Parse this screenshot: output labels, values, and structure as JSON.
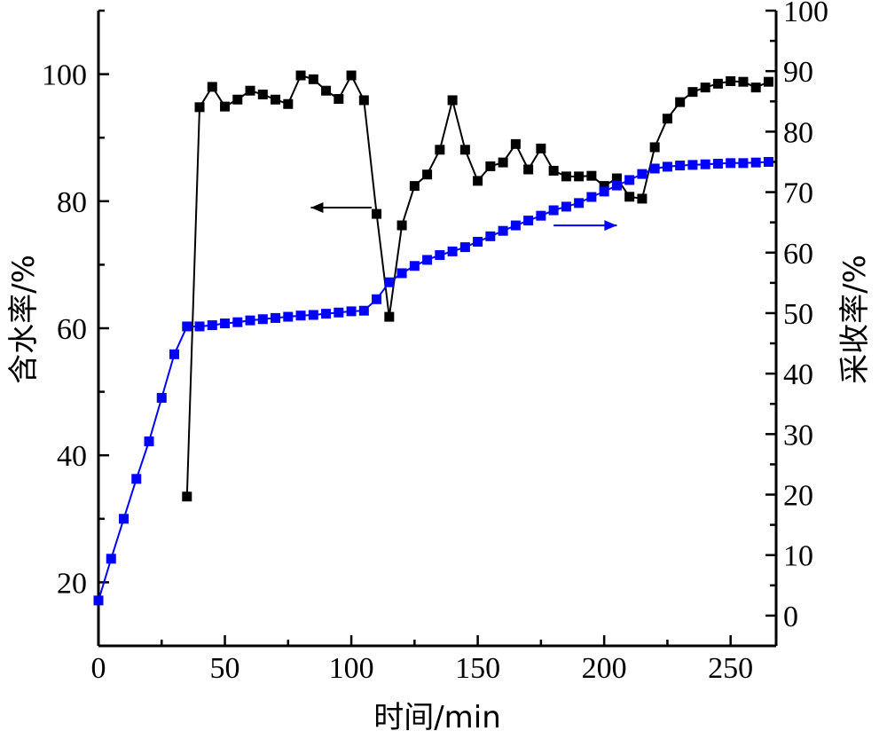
{
  "chart_data": {
    "type": "line",
    "title": "",
    "xlabel": "时间/min",
    "ylabel_left": "含水率/%",
    "ylabel_right": "采收率/%",
    "xlim": [
      0,
      268
    ],
    "ylim_left": [
      10,
      110
    ],
    "ylim_right": [
      -5,
      100
    ],
    "xticks": [
      0,
      50,
      100,
      150,
      200,
      250
    ],
    "yticks_left": [
      20,
      40,
      60,
      80,
      100
    ],
    "yticks_right": [
      0,
      10,
      20,
      30,
      40,
      50,
      60,
      70,
      80,
      90,
      100
    ],
    "grid": false,
    "legend": "none",
    "series": [
      {
        "axis": "left",
        "color": "#000000",
        "marker": "square",
        "x": [
          35,
          40,
          45,
          50,
          55,
          60,
          65,
          70,
          75,
          80,
          85,
          90,
          95,
          100,
          105,
          110,
          115,
          120,
          125,
          130,
          135,
          140,
          145,
          150,
          155,
          160,
          165,
          170,
          175,
          180,
          185,
          190,
          195,
          200,
          205,
          210,
          215,
          220,
          225,
          230,
          235,
          240,
          245,
          250,
          255,
          260,
          265
        ],
        "y": [
          33.5,
          94.8,
          98.0,
          94.9,
          96.0,
          97.4,
          96.8,
          96.0,
          95.3,
          99.8,
          99.2,
          97.4,
          96.1,
          99.8,
          95.9,
          78.0,
          61.8,
          76.2,
          82.4,
          84.2,
          88.1,
          95.9,
          88.1,
          83.2,
          85.5,
          86.1,
          89.0,
          85.0,
          88.3,
          84.8,
          83.9,
          83.9,
          84.0,
          82.4,
          83.6,
          80.7,
          80.4,
          88.5,
          93.0,
          95.6,
          97.2,
          97.9,
          98.5,
          98.9,
          98.8,
          97.9,
          98.8
        ]
      },
      {
        "axis": "right",
        "color": "#0000ff",
        "marker": "square",
        "x": [
          0,
          5,
          10,
          15,
          20,
          25,
          30,
          35,
          40,
          45,
          50,
          55,
          60,
          65,
          70,
          75,
          80,
          85,
          90,
          95,
          100,
          105,
          110,
          115,
          120,
          125,
          130,
          135,
          140,
          145,
          150,
          155,
          160,
          165,
          170,
          175,
          180,
          185,
          190,
          195,
          200,
          205,
          210,
          215,
          220,
          225,
          230,
          235,
          240,
          245,
          250,
          255,
          260,
          265
        ],
        "y": [
          2.5,
          9.4,
          16.0,
          22.6,
          28.8,
          36.0,
          43.2,
          47.8,
          47.8,
          48.0,
          48.3,
          48.5,
          48.8,
          49.0,
          49.2,
          49.4,
          49.6,
          49.7,
          49.9,
          50.1,
          50.3,
          50.4,
          52.3,
          55.1,
          56.6,
          57.8,
          58.8,
          59.6,
          60.2,
          60.9,
          61.8,
          62.7,
          63.6,
          64.5,
          65.3,
          66.1,
          67.0,
          67.6,
          68.2,
          69.2,
          70.1,
          71.1,
          72.0,
          73.0,
          73.9,
          74.2,
          74.4,
          74.5,
          74.6,
          74.7,
          74.8,
          74.8,
          74.9,
          75.0
        ]
      }
    ],
    "annotations": [
      {
        "type": "arrow",
        "direction": "left",
        "color": "#000000",
        "points_to": "left axis",
        "at_x": [
          84,
          108
        ],
        "at_y_left": 79
      },
      {
        "type": "arrow",
        "direction": "right",
        "color": "#0000ff",
        "points_to": "right axis",
        "at_x": [
          180,
          205
        ],
        "at_y_right": 64.5
      }
    ]
  }
}
